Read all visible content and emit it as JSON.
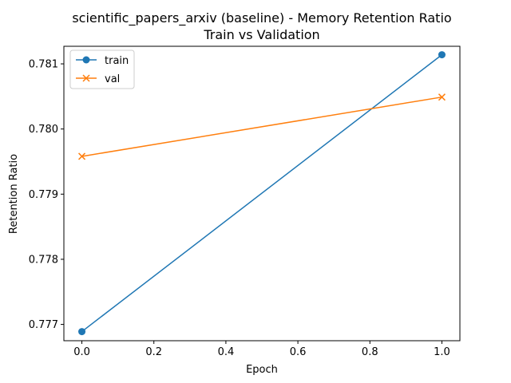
{
  "chart_data": {
    "type": "line",
    "title_line1": "scientific_papers_arxiv (baseline) - Memory Retention Ratio",
    "title_line2": "Train vs Validation",
    "xlabel": "Epoch",
    "ylabel": "Retention Ratio",
    "xlim": [
      -0.05,
      1.05
    ],
    "ylim": [
      0.77675,
      0.78127
    ],
    "xticks": [
      0.0,
      0.2,
      0.4,
      0.6,
      0.8,
      1.0
    ],
    "xtick_labels": [
      "0.0",
      "0.2",
      "0.4",
      "0.6",
      "0.8",
      "1.0"
    ],
    "yticks": [
      0.777,
      0.778,
      0.779,
      0.78,
      0.781
    ],
    "ytick_labels": [
      "0.777",
      "0.778",
      "0.779",
      "0.780",
      "0.781"
    ],
    "grid": false,
    "legend_position": "top-left",
    "series": [
      {
        "name": "train",
        "color": "#1f77b4",
        "marker": "circle",
        "x": [
          0,
          1
        ],
        "y": [
          0.77689,
          0.78114
        ]
      },
      {
        "name": "val",
        "color": "#ff7f0e",
        "marker": "x",
        "x": [
          0,
          1
        ],
        "y": [
          0.77958,
          0.78049
        ]
      }
    ]
  }
}
